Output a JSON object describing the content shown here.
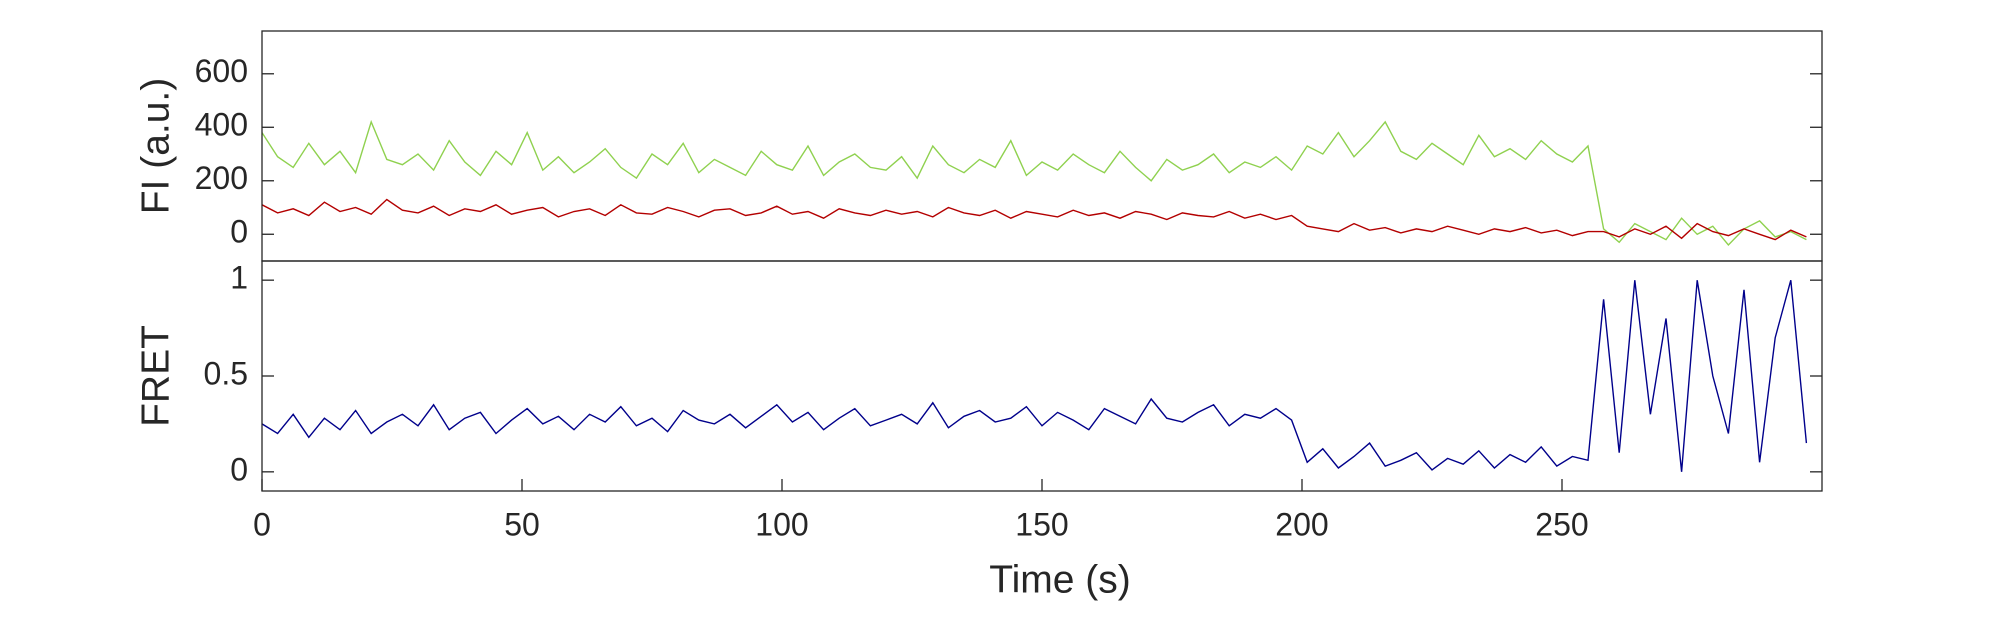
{
  "chart_data": [
    {
      "type": "line",
      "ylabel": "FI (a.u.)",
      "x": [
        0,
        3,
        6,
        9,
        12,
        15,
        18,
        21,
        24,
        27,
        30,
        33,
        36,
        39,
        42,
        45,
        48,
        51,
        54,
        57,
        60,
        63,
        66,
        69,
        72,
        75,
        78,
        81,
        84,
        87,
        90,
        93,
        96,
        99,
        102,
        105,
        108,
        111,
        114,
        117,
        120,
        123,
        126,
        129,
        132,
        135,
        138,
        141,
        144,
        147,
        150,
        153,
        156,
        159,
        162,
        165,
        168,
        171,
        174,
        177,
        180,
        183,
        186,
        189,
        192,
        195,
        198,
        201,
        204,
        207,
        210,
        213,
        216,
        219,
        222,
        225,
        228,
        231,
        234,
        237,
        240,
        243,
        246,
        249,
        252,
        255,
        258,
        261,
        264,
        267,
        270,
        273,
        276,
        279,
        282,
        285,
        288,
        291,
        294,
        297
      ],
      "xlim": [
        0,
        300
      ],
      "ylim": [
        -100,
        760
      ],
      "yticks": [
        0,
        200,
        400,
        600
      ],
      "series": [
        {
          "color": "#8fd14f",
          "values": [
            380,
            290,
            250,
            340,
            260,
            310,
            230,
            420,
            280,
            260,
            300,
            240,
            350,
            270,
            220,
            310,
            260,
            380,
            240,
            290,
            230,
            270,
            320,
            250,
            210,
            300,
            260,
            340,
            230,
            280,
            250,
            220,
            310,
            260,
            240,
            330,
            220,
            270,
            300,
            250,
            240,
            290,
            210,
            330,
            260,
            230,
            280,
            250,
            350,
            220,
            270,
            240,
            300,
            260,
            230,
            310,
            250,
            200,
            280,
            240,
            260,
            300,
            230,
            270,
            250,
            290,
            240,
            330,
            300,
            380,
            290,
            350,
            420,
            310,
            280,
            340,
            300,
            260,
            370,
            290,
            320,
            280,
            350,
            300,
            270,
            330,
            20,
            -30,
            40,
            10,
            -20,
            60,
            0,
            30,
            -40,
            20,
            50,
            -10,
            10,
            -20
          ]
        },
        {
          "color": "#b30000",
          "values": [
            110,
            80,
            95,
            70,
            120,
            85,
            100,
            75,
            130,
            90,
            80,
            105,
            70,
            95,
            85,
            110,
            75,
            90,
            100,
            65,
            85,
            95,
            70,
            110,
            80,
            75,
            100,
            85,
            65,
            90,
            95,
            70,
            80,
            105,
            75,
            85,
            60,
            95,
            80,
            70,
            90,
            75,
            85,
            65,
            100,
            80,
            70,
            90,
            60,
            85,
            75,
            65,
            90,
            70,
            80,
            60,
            85,
            75,
            55,
            80,
            70,
            65,
            85,
            60,
            75,
            55,
            70,
            30,
            20,
            10,
            40,
            15,
            25,
            5,
            20,
            10,
            30,
            15,
            0,
            20,
            10,
            25,
            5,
            15,
            -5,
            10,
            10,
            -10,
            20,
            0,
            30,
            -15,
            40,
            10,
            -5,
            20,
            0,
            -20,
            15,
            -10
          ]
        }
      ]
    },
    {
      "type": "line",
      "ylabel": "FRET",
      "xlabel": "Time (s)",
      "x": [
        0,
        3,
        6,
        9,
        12,
        15,
        18,
        21,
        24,
        27,
        30,
        33,
        36,
        39,
        42,
        45,
        48,
        51,
        54,
        57,
        60,
        63,
        66,
        69,
        72,
        75,
        78,
        81,
        84,
        87,
        90,
        93,
        96,
        99,
        102,
        105,
        108,
        111,
        114,
        117,
        120,
        123,
        126,
        129,
        132,
        135,
        138,
        141,
        144,
        147,
        150,
        153,
        156,
        159,
        162,
        165,
        168,
        171,
        174,
        177,
        180,
        183,
        186,
        189,
        192,
        195,
        198,
        201,
        204,
        207,
        210,
        213,
        216,
        219,
        222,
        225,
        228,
        231,
        234,
        237,
        240,
        243,
        246,
        249,
        252,
        255,
        258,
        261,
        264,
        267,
        270,
        273,
        276,
        279,
        282,
        285,
        288,
        291,
        294,
        297
      ],
      "xlim": [
        0,
        300
      ],
      "xticks": [
        0,
        50,
        100,
        150,
        200,
        250
      ],
      "ylim": [
        -0.1,
        1.1
      ],
      "yticks": [
        0,
        0.5,
        1
      ],
      "series": [
        {
          "color": "#00008b",
          "values": [
            0.25,
            0.2,
            0.3,
            0.18,
            0.28,
            0.22,
            0.32,
            0.2,
            0.26,
            0.3,
            0.24,
            0.35,
            0.22,
            0.28,
            0.31,
            0.2,
            0.27,
            0.33,
            0.25,
            0.29,
            0.22,
            0.3,
            0.26,
            0.34,
            0.24,
            0.28,
            0.21,
            0.32,
            0.27,
            0.25,
            0.3,
            0.23,
            0.29,
            0.35,
            0.26,
            0.31,
            0.22,
            0.28,
            0.33,
            0.24,
            0.27,
            0.3,
            0.25,
            0.36,
            0.23,
            0.29,
            0.32,
            0.26,
            0.28,
            0.34,
            0.24,
            0.31,
            0.27,
            0.22,
            0.33,
            0.29,
            0.25,
            0.38,
            0.28,
            0.26,
            0.31,
            0.35,
            0.24,
            0.3,
            0.28,
            0.33,
            0.27,
            0.05,
            0.12,
            0.02,
            0.08,
            0.15,
            0.03,
            0.06,
            0.1,
            0.01,
            0.07,
            0.04,
            0.11,
            0.02,
            0.09,
            0.05,
            0.13,
            0.03,
            0.08,
            0.06,
            0.9,
            0.1,
            1.0,
            0.3,
            0.8,
            0.0,
            1.0,
            0.5,
            0.2,
            0.95,
            0.05,
            0.7,
            1.0,
            0.15
          ]
        }
      ]
    }
  ]
}
